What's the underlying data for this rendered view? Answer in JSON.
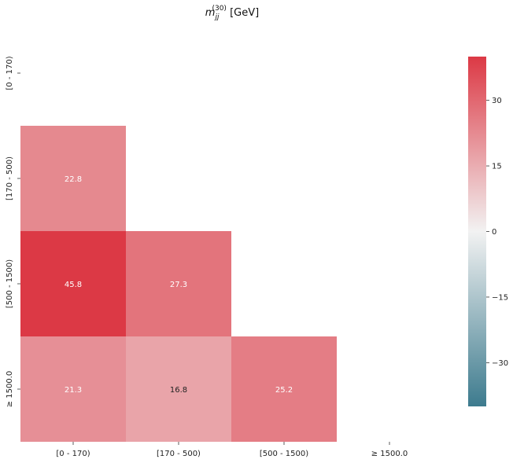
{
  "chart_data": {
    "type": "heatmap",
    "title": {
      "symbol": "m",
      "subscript": "jj",
      "superscript": "(30)",
      "unit": "[GeV]"
    },
    "x_categories": [
      "[0 - 170)",
      "[170 - 500)",
      "[500 - 1500)",
      "≥ 1500.0"
    ],
    "y_categories": [
      "[0 - 170)",
      "[170 - 500)",
      "[500 - 1500)",
      "≥ 1500.0"
    ],
    "cells": [
      {
        "row": 1,
        "col": 0,
        "value": 22.8,
        "label": "22.8"
      },
      {
        "row": 2,
        "col": 0,
        "value": 45.8,
        "label": "45.8"
      },
      {
        "row": 2,
        "col": 1,
        "value": 27.3,
        "label": "27.3"
      },
      {
        "row": 3,
        "col": 0,
        "value": 21.3,
        "label": "21.3"
      },
      {
        "row": 3,
        "col": 1,
        "value": 16.8,
        "label": "16.8"
      },
      {
        "row": 3,
        "col": 2,
        "value": 25.2,
        "label": "25.2"
      }
    ],
    "mask": "upper-triangle-including-diagonal",
    "colorbar": {
      "vmin": -40,
      "vmax": 40,
      "ticks": [
        30,
        15,
        0,
        -15,
        -30
      ],
      "tick_labels": [
        "30",
        "15",
        "0",
        "−15",
        "−30"
      ],
      "colors": {
        "low": "#3d7b8e",
        "mid": "#f2f2f2",
        "high": "#dc3945"
      }
    },
    "grid": false,
    "legend": "none"
  }
}
